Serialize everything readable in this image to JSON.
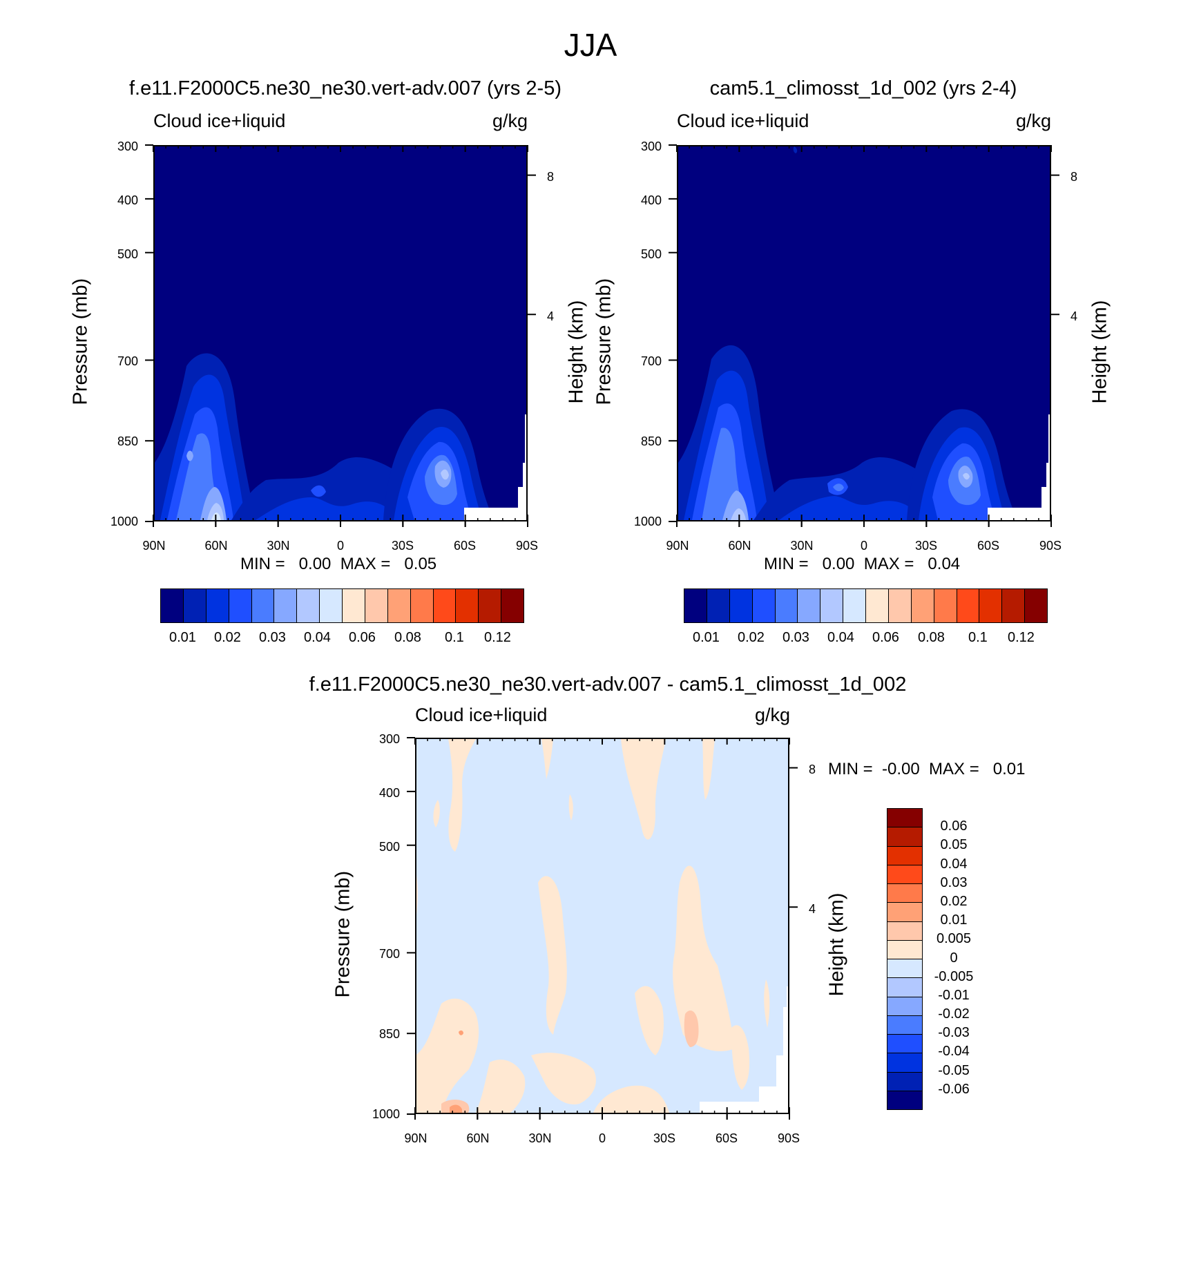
{
  "figure": {
    "season_title": "JJA"
  },
  "palette": {
    "abs": [
      "#00007f",
      "#0021b4",
      "#0033e0",
      "#1f4fff",
      "#4a7cff",
      "#86a8ff",
      "#b2c8ff",
      "#d6e8ff",
      "#ffe8d2",
      "#ffc8ac",
      "#ffa176",
      "#ff7a4a",
      "#ff4a1a",
      "#e33000",
      "#b51b00",
      "#850000"
    ],
    "diff": [
      "#00007f",
      "#0021b4",
      "#0033e0",
      "#1f4fff",
      "#4a7cff",
      "#86a8ff",
      "#b2c8ff",
      "#d6e8ff",
      "#ffe8d2",
      "#ffc8ac",
      "#ffa176",
      "#ff7a4a",
      "#ff4a1a",
      "#e33000",
      "#b51b00",
      "#850000"
    ]
  },
  "panels": [
    {
      "title": "f.e11.F2000C5.ne30_ne30.vert-adv.007 (yrs 2-5)",
      "left_string": "Cloud ice+liquid",
      "right_string": "g/kg",
      "stats": "MIN =   0.00  MAX =   0.05",
      "ylabel": "Pressure (mb)",
      "y2label": "Height (km)"
    },
    {
      "title": "cam5.1_climosst_1d_002 (yrs 2-4)",
      "left_string": "Cloud ice+liquid",
      "right_string": "g/kg",
      "stats": "MIN =   0.00  MAX =   0.04",
      "ylabel": "Pressure (mb)",
      "y2label": "Height (km)"
    },
    {
      "title": "f.e11.F2000C5.ne30_ne30.vert-adv.007 - cam5.1_climosst_1d_002",
      "left_string": "Cloud ice+liquid",
      "right_string": "g/kg",
      "stats": "MIN =  -0.00  MAX =   0.01",
      "ylabel": "Pressure (mb)",
      "y2label": "Height (km)"
    }
  ],
  "axes": {
    "x_ticks": [
      "90N",
      "60N",
      "30N",
      "0",
      "30S",
      "60S",
      "90S"
    ],
    "y_ticks": [
      "300",
      "400",
      "500",
      "700",
      "850",
      "1000"
    ],
    "y2_ticks": [
      "8",
      "4"
    ]
  },
  "colorbars": {
    "abs_labels": [
      "0.01",
      "0.02",
      "0.03",
      "0.04",
      "0.06",
      "0.08",
      "0.1",
      "0.12"
    ],
    "diff_labels": [
      "0.06",
      "0.05",
      "0.04",
      "0.03",
      "0.02",
      "0.01",
      "0.005",
      "0",
      "-0.005",
      "-0.01",
      "-0.02",
      "-0.03",
      "-0.04",
      "-0.05",
      "-0.06"
    ]
  },
  "chart_data": [
    {
      "type": "heatmap",
      "title": "f.e11.F2000C5.ne30_ne30.vert-adv.007 (yrs 2-5)",
      "variable": "Cloud ice+liquid",
      "units": "g/kg",
      "xlabel": "",
      "ylabel": "Pressure (mb)",
      "y2label": "Height (km)",
      "x_range": [
        "90N",
        "90S"
      ],
      "y_range": [
        300,
        1000
      ],
      "min": 0.0,
      "max": 0.05,
      "contour_levels": [
        0.005,
        0.01,
        0.015,
        0.02,
        0.025,
        0.03,
        0.035,
        0.04,
        0.05,
        0.06,
        0.07,
        0.08,
        0.09,
        0.1,
        0.11,
        0.12
      ]
    },
    {
      "type": "heatmap",
      "title": "cam5.1_climosst_1d_002 (yrs 2-4)",
      "variable": "Cloud ice+liquid",
      "units": "g/kg",
      "xlabel": "",
      "ylabel": "Pressure (mb)",
      "y2label": "Height (km)",
      "x_range": [
        "90N",
        "90S"
      ],
      "y_range": [
        300,
        1000
      ],
      "min": 0.0,
      "max": 0.04,
      "contour_levels": [
        0.005,
        0.01,
        0.015,
        0.02,
        0.025,
        0.03,
        0.035,
        0.04,
        0.05,
        0.06,
        0.07,
        0.08,
        0.09,
        0.1,
        0.11,
        0.12
      ]
    },
    {
      "type": "heatmap",
      "title": "f.e11.F2000C5.ne30_ne30.vert-adv.007 - cam5.1_climosst_1d_002",
      "variable": "Cloud ice+liquid",
      "units": "g/kg",
      "xlabel": "",
      "ylabel": "Pressure (mb)",
      "y2label": "Height (km)",
      "x_range": [
        "90N",
        "90S"
      ],
      "y_range": [
        300,
        1000
      ],
      "min": -0.0,
      "max": 0.01,
      "contour_levels": [
        -0.06,
        -0.05,
        -0.04,
        -0.03,
        -0.02,
        -0.01,
        -0.005,
        0,
        0.005,
        0.01,
        0.02,
        0.03,
        0.04,
        0.05,
        0.06
      ]
    }
  ]
}
